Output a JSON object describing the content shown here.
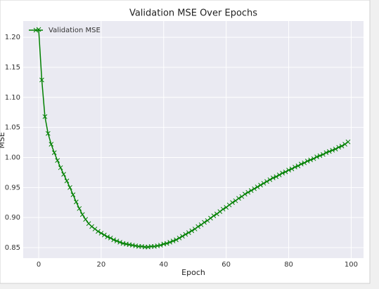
{
  "chart_data": {
    "type": "line",
    "title": "Validation MSE Over Epochs",
    "x_label": "Epoch",
    "y_label": "MSE",
    "x": [
      0,
      1,
      2,
      3,
      4,
      5,
      6,
      7,
      8,
      9,
      10,
      11,
      12,
      13,
      14,
      15,
      16,
      17,
      18,
      19,
      20,
      21,
      22,
      23,
      24,
      25,
      26,
      27,
      28,
      29,
      30,
      31,
      32,
      33,
      34,
      35,
      36,
      37,
      38,
      39,
      40,
      41,
      42,
      43,
      44,
      45,
      46,
      47,
      48,
      49,
      50,
      51,
      52,
      53,
      54,
      55,
      56,
      57,
      58,
      59,
      60,
      61,
      62,
      63,
      64,
      65,
      66,
      67,
      68,
      69,
      70,
      71,
      72,
      73,
      74,
      75,
      76,
      77,
      78,
      79,
      80,
      81,
      82,
      83,
      84,
      85,
      86,
      87,
      88,
      89,
      90,
      91,
      92,
      93,
      94,
      95,
      96,
      97,
      98,
      99
    ],
    "series": [
      {
        "name": "Validation MSE",
        "color": "#008000",
        "marker": "x",
        "values": [
          1.213,
          1.129,
          1.068,
          1.04,
          1.022,
          1.008,
          0.995,
          0.983,
          0.972,
          0.961,
          0.95,
          0.938,
          0.926,
          0.915,
          0.905,
          0.897,
          0.89,
          0.885,
          0.881,
          0.877,
          0.874,
          0.871,
          0.868,
          0.866,
          0.863,
          0.861,
          0.859,
          0.857,
          0.856,
          0.855,
          0.854,
          0.853,
          0.852,
          0.852,
          0.851,
          0.851,
          0.852,
          0.852,
          0.853,
          0.854,
          0.856,
          0.857,
          0.859,
          0.861,
          0.863,
          0.866,
          0.869,
          0.872,
          0.875,
          0.878,
          0.881,
          0.885,
          0.888,
          0.892,
          0.895,
          0.899,
          0.903,
          0.906,
          0.91,
          0.914,
          0.917,
          0.921,
          0.925,
          0.928,
          0.932,
          0.935,
          0.939,
          0.942,
          0.945,
          0.948,
          0.951,
          0.954,
          0.957,
          0.96,
          0.963,
          0.966,
          0.968,
          0.971,
          0.974,
          0.976,
          0.979,
          0.981,
          0.984,
          0.986,
          0.989,
          0.991,
          0.994,
          0.996,
          0.998,
          1.001,
          1.003,
          1.005,
          1.008,
          1.01,
          1.012,
          1.014,
          1.017,
          1.019,
          1.022,
          1.026
        ]
      }
    ],
    "xlim": [
      -4.95,
      103.95
    ],
    "ylim": [
      0.8325,
      1.227
    ],
    "xticks": [
      0,
      20,
      40,
      60,
      80,
      100
    ],
    "yticks": [
      0.85,
      {
        "value": 0.9,
        "label": "0.90"
      },
      0.95,
      {
        "value": 1.0,
        "label": "1.00"
      },
      1.05,
      {
        "value": 1.1,
        "label": "1.10"
      },
      1.15,
      {
        "value": 1.2,
        "label": "1.20"
      }
    ],
    "grid": true,
    "legend": "upper left"
  }
}
